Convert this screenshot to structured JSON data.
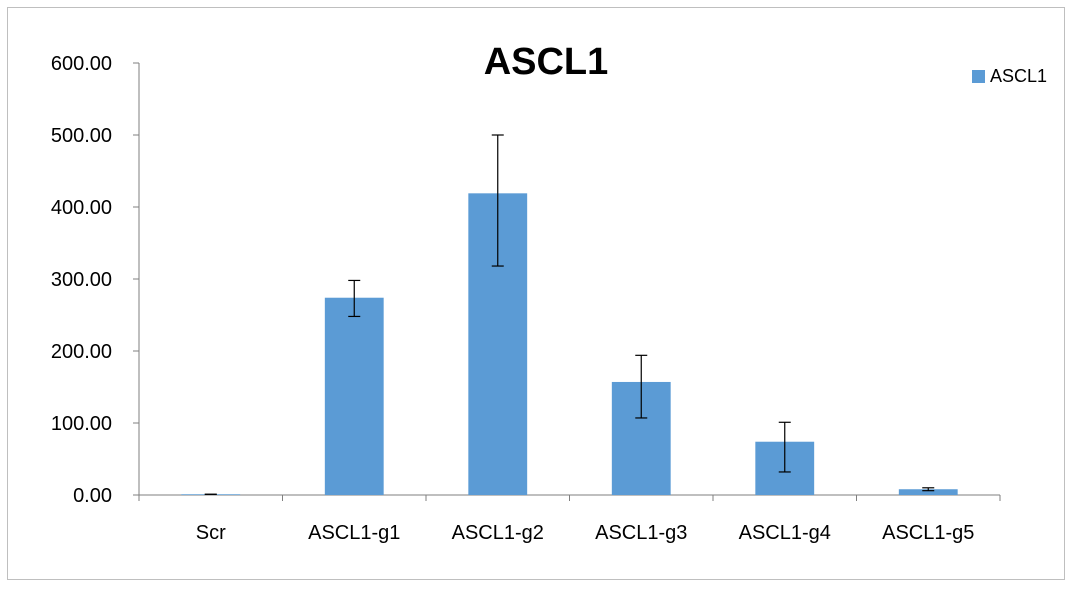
{
  "chart_data": {
    "type": "bar",
    "title": "ASCL1",
    "categories": [
      "Scr",
      "ASCL1-g1",
      "ASCL1-g2",
      "ASCL1-g3",
      "ASCL1-g4",
      "ASCL1-g5"
    ],
    "series": [
      {
        "name": "ASCL1",
        "values": [
          1.0,
          274,
          419,
          157,
          74,
          8
        ],
        "error_low": [
          1.0,
          248,
          318,
          107,
          32,
          6
        ],
        "error_high": [
          1.0,
          298,
          500,
          194,
          101,
          10
        ]
      }
    ],
    "y_ticks": [
      "0.00",
      "100.00",
      "200.00",
      "300.00",
      "400.00",
      "500.00",
      "600.00"
    ],
    "ylim": [
      0,
      600
    ],
    "grid": false,
    "legend_position": "top-right",
    "colors": {
      "bar": "#5B9BD5",
      "axis": "#7F7F7F",
      "frame": "#BFBFBF",
      "error": "#000000"
    }
  }
}
